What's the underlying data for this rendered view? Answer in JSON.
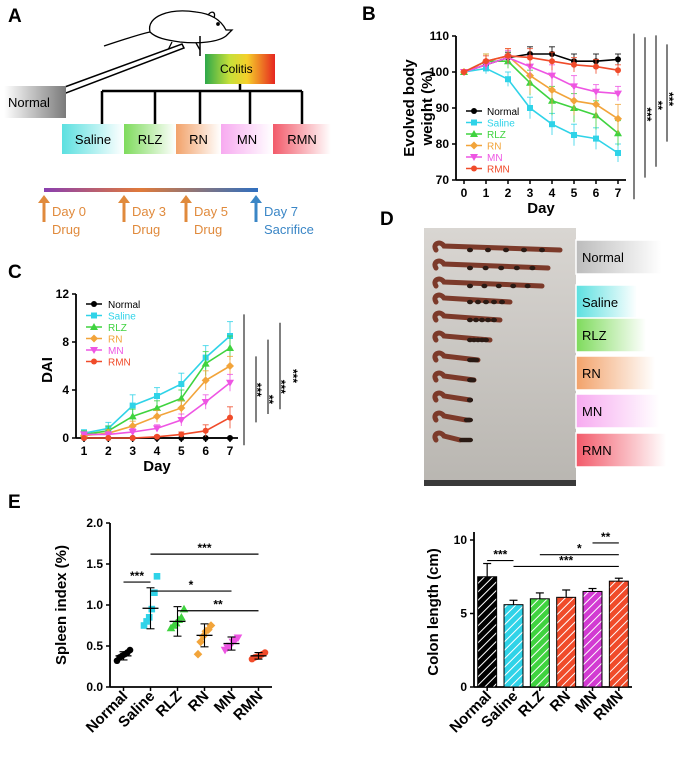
{
  "panels": {
    "A": {
      "label": "A",
      "normal": "Normal",
      "colitis": "Colitis",
      "groups": [
        "Saline",
        "RLZ",
        "RN",
        "MN",
        "RMN"
      ],
      "group_colors": [
        "#5ce0e0",
        "#7edb5c",
        "#f2a26a",
        "#f7aaf0",
        "#f25a6a"
      ],
      "timeline": [
        {
          "day": "Day 0",
          "event": "Drug",
          "color": "#e08a3c"
        },
        {
          "day": "Day 3",
          "event": "Drug",
          "color": "#e08a3c"
        },
        {
          "day": "Day 5",
          "event": "Drug",
          "color": "#e08a3c"
        },
        {
          "day": "Day 7",
          "event": "Sacrifice",
          "color": "#3a86c6"
        }
      ]
    },
    "B": {
      "label": "B"
    },
    "C": {
      "label": "C"
    },
    "D": {
      "label": "D",
      "photo_labels": [
        "Normal",
        "Saline",
        "RLZ",
        "RN",
        "MN",
        "RMN"
      ],
      "photo_label_colors": [
        "#bcbcbc",
        "#5ce0e0",
        "#7edb5c",
        "#f2a26a",
        "#f7aaf0",
        "#f25a6a"
      ],
      "photo_label_widths": [
        0.95,
        0.68,
        0.78,
        0.88,
        0.93,
        1.0
      ]
    },
    "E": {
      "label": "E"
    }
  },
  "chart_data": [
    {
      "id": "weight",
      "type": "line",
      "ylabel_lines": [
        "Evolved body",
        "weight (%)"
      ],
      "xlabel": "Day",
      "x": [
        0,
        1,
        2,
        3,
        4,
        5,
        6,
        7
      ],
      "xticks": [
        "0",
        "1",
        "2",
        "3",
        "4",
        "5",
        "6",
        "7"
      ],
      "ylim": [
        70,
        110
      ],
      "yticks": [
        70,
        80,
        90,
        100,
        110
      ],
      "series": [
        {
          "name": "Normal",
          "color": "#000000",
          "marker": "circle",
          "values": [
            100,
            102,
            104,
            105,
            105,
            103,
            103,
            103.5
          ],
          "err": [
            0.5,
            1,
            1.5,
            2,
            2,
            2,
            2,
            1.5
          ]
        },
        {
          "name": "Saline",
          "color": "#2fd3e8",
          "marker": "square",
          "values": [
            100,
            101,
            98,
            90,
            85.5,
            82.5,
            81.5,
            77.5
          ],
          "err": [
            0.5,
            1.5,
            2,
            3,
            3,
            3,
            3,
            2.5
          ]
        },
        {
          "name": "RLZ",
          "color": "#3fd33f",
          "marker": "triangle",
          "values": [
            100,
            103,
            103,
            97,
            92,
            90,
            88,
            83
          ],
          "err": [
            0.5,
            2,
            2,
            3.5,
            4,
            4,
            4,
            3.5
          ]
        },
        {
          "name": "RN",
          "color": "#f2a43a",
          "marker": "diamond",
          "values": [
            100,
            103,
            104.5,
            99,
            95,
            92,
            91,
            87
          ],
          "err": [
            0.5,
            2,
            2,
            5,
            4,
            4,
            4,
            4
          ]
        },
        {
          "name": "MN",
          "color": "#ee55e3",
          "marker": "trianglev",
          "values": [
            100,
            102,
            104,
            101.5,
            99,
            96,
            94.5,
            94
          ],
          "err": [
            0.5,
            1.5,
            2,
            3,
            3,
            3,
            2,
            2
          ]
        },
        {
          "name": "RMN",
          "color": "#f04b2a",
          "marker": "circle",
          "values": [
            100,
            103,
            104.5,
            104,
            103,
            102,
            101.5,
            100.5
          ],
          "err": [
            0.5,
            1.5,
            2,
            2.5,
            2.5,
            2,
            2,
            1.5
          ]
        }
      ],
      "significance": [
        "***",
        "**",
        "***",
        "***"
      ]
    },
    {
      "id": "dai",
      "type": "line",
      "ylabel": "DAI",
      "xlabel": "Day",
      "x": [
        1,
        2,
        3,
        4,
        5,
        6,
        7
      ],
      "xticks": [
        "1",
        "2",
        "3",
        "4",
        "5",
        "6",
        "7"
      ],
      "ylim": [
        0,
        12
      ],
      "yticks": [
        0,
        4,
        8,
        12
      ],
      "series": [
        {
          "name": "Normal",
          "color": "#000000",
          "marker": "circle",
          "values": [
            0,
            0,
            0,
            0,
            0,
            0,
            0
          ],
          "err": [
            0,
            0,
            0,
            0,
            0,
            0,
            0
          ]
        },
        {
          "name": "Saline",
          "color": "#2fd3e8",
          "marker": "square",
          "values": [
            0.4,
            0.8,
            2.7,
            3.5,
            4.5,
            6.7,
            8.5
          ],
          "err": [
            0.3,
            0.5,
            0.9,
            0.7,
            0.9,
            1.0,
            1.2
          ]
        },
        {
          "name": "RLZ",
          "color": "#3fd33f",
          "marker": "triangle",
          "values": [
            0.3,
            0.6,
            1.8,
            2.5,
            3.3,
            6.2,
            7.5
          ],
          "err": [
            0.3,
            0.4,
            0.6,
            0.6,
            0.7,
            1.0,
            1.0
          ]
        },
        {
          "name": "RN",
          "color": "#f2a43a",
          "marker": "diamond",
          "values": [
            0.2,
            0.4,
            1.0,
            1.8,
            2.5,
            4.8,
            6.0
          ],
          "err": [
            0.2,
            0.3,
            0.4,
            0.5,
            0.6,
            0.8,
            0.8
          ]
        },
        {
          "name": "MN",
          "color": "#ee55e3",
          "marker": "trianglev",
          "values": [
            0.3,
            0.3,
            0.5,
            0.8,
            1.5,
            3.0,
            4.6
          ],
          "err": [
            0.2,
            0.2,
            0.3,
            0.3,
            0.5,
            0.6,
            0.7
          ]
        },
        {
          "name": "RMN",
          "color": "#f04b2a",
          "marker": "circle",
          "values": [
            0,
            0,
            0,
            0.1,
            0.3,
            0.6,
            1.7
          ],
          "err": [
            0,
            0,
            0,
            0.1,
            0.2,
            0.5,
            0.9
          ]
        }
      ],
      "significance": [
        "***",
        "**",
        "***",
        "***"
      ]
    },
    {
      "id": "spleen",
      "type": "scatter",
      "ylabel": "Spleen index (%)",
      "ylim": [
        0,
        2.0
      ],
      "yticks": [
        "0.0",
        "0.5",
        "1.0",
        "1.5",
        "2.0"
      ],
      "categories": [
        "Normal",
        "Saline",
        "RLZ",
        "RN",
        "MN",
        "RMN"
      ],
      "colors": [
        "#000000",
        "#2fd3e8",
        "#3fd33f",
        "#f2a43a",
        "#ee55e3",
        "#f04b2a"
      ],
      "markers": [
        "circle",
        "square",
        "triangle",
        "diamond",
        "trianglev",
        "circle"
      ],
      "points": [
        [
          0.32,
          0.36,
          0.38,
          0.4,
          0.42,
          0.45
        ],
        [
          0.75,
          0.8,
          0.85,
          0.95,
          1.15,
          1.35
        ],
        [
          0.72,
          0.75,
          0.78,
          0.82,
          0.85,
          0.95
        ],
        [
          0.4,
          0.55,
          0.62,
          0.68,
          0.7,
          0.75
        ],
        [
          0.45,
          0.48,
          0.5,
          0.55,
          0.57,
          0.6
        ],
        [
          0.34,
          0.36,
          0.37,
          0.38,
          0.4,
          0.42
        ]
      ],
      "means": [
        0.38,
        0.96,
        0.8,
        0.63,
        0.53,
        0.38
      ],
      "sd": [
        0.05,
        0.25,
        0.18,
        0.14,
        0.08,
        0.04
      ],
      "brackets": [
        {
          "from": 0,
          "to": 1,
          "y": 1.28,
          "label": "***"
        },
        {
          "from": 1,
          "to": 5,
          "y": 1.62,
          "label": "***"
        },
        {
          "from": 1,
          "to": 4,
          "y": 1.17,
          "label": "*"
        },
        {
          "from": 2,
          "to": 5,
          "y": 0.93,
          "label": "**"
        }
      ]
    },
    {
      "id": "colon",
      "type": "bar",
      "ylabel": "Colon length (cm)",
      "ylim": [
        0,
        10
      ],
      "yticks": [
        0,
        5,
        10
      ],
      "categories": [
        "Normal",
        "Saline",
        "RLZ",
        "RN",
        "MN",
        "RMN"
      ],
      "values": [
        7.5,
        5.6,
        6.0,
        6.1,
        6.5,
        7.2
      ],
      "err": [
        0.9,
        0.3,
        0.4,
        0.5,
        0.2,
        0.2
      ],
      "colors": [
        "#000000",
        "#2fd3e8",
        "#3fd33f",
        "#f04b2a",
        "#d23ad2",
        "#f04b2a"
      ],
      "brackets": [
        {
          "from": 0,
          "to": 1,
          "y": 8.6,
          "label": "***"
        },
        {
          "from": 1,
          "to": 5,
          "y": 8.2,
          "label": "***"
        },
        {
          "from": 2,
          "to": 5,
          "y": 9.0,
          "label": "*"
        },
        {
          "from": 4,
          "to": 5,
          "y": 9.8,
          "label": "**"
        }
      ]
    }
  ]
}
